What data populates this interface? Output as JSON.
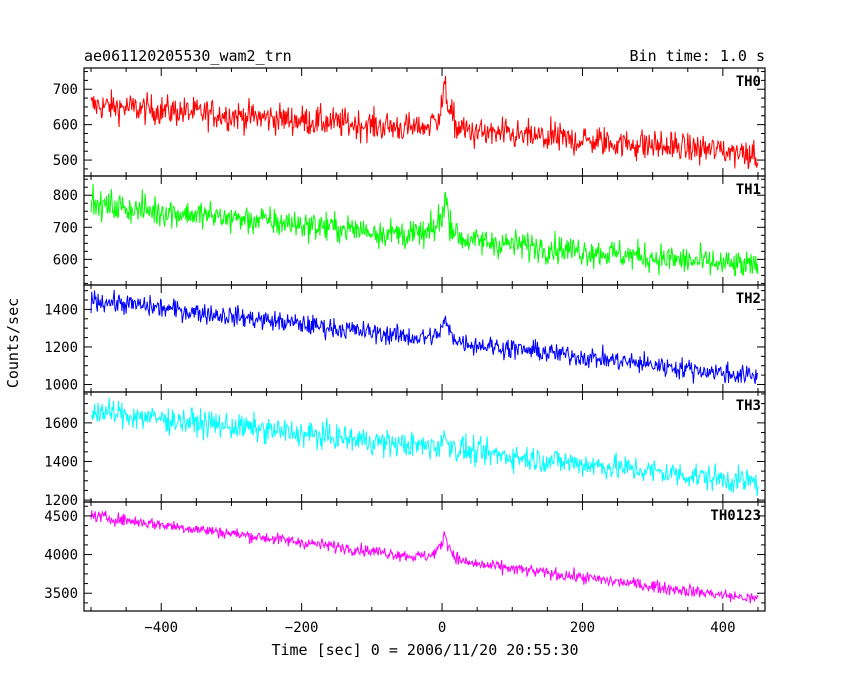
{
  "title_left": "ae061120205530_wam2_trn",
  "title_right": "Bin time: 1.0 s",
  "chart_data": {
    "type": "line",
    "xlabel": "Time [sec] 0 = 2006/11/20 20:55:30",
    "ylabel": "Counts/sec",
    "xlim": [
      -510,
      460
    ],
    "x_range": [
      -500,
      450
    ],
    "bin_time": 1.0,
    "x_ticks": [
      -400,
      -200,
      0,
      200,
      400
    ],
    "panels": [
      {
        "name": "TH0",
        "color": "#ff0000",
        "ylim": [
          455,
          760
        ],
        "yticks": [
          500,
          600,
          700
        ],
        "trend_start": 655,
        "trend_end": 520,
        "noise": 30,
        "burst_peak_time": 5,
        "burst_peak_rate": 740
      },
      {
        "name": "TH1",
        "color": "#00ff00",
        "ylim": [
          520,
          860
        ],
        "yticks": [
          600,
          700,
          800
        ],
        "trend_start": 770,
        "trend_end": 575,
        "noise": 32,
        "burst_peak_time": 5,
        "burst_peak_rate": 830
      },
      {
        "name": "TH2",
        "color": "#0000ff",
        "ylim": [
          960,
          1530
        ],
        "yticks": [
          1000,
          1200,
          1400
        ],
        "trend_start": 1450,
        "trend_end": 1040,
        "noise": 38,
        "burst_peak_time": 5,
        "burst_peak_rate": 1370
      },
      {
        "name": "TH3",
        "color": "#00ffff",
        "ylim": [
          1190,
          1760
        ],
        "yticks": [
          1200,
          1400,
          1600
        ],
        "trend_start": 1660,
        "trend_end": 1290,
        "noise": 48,
        "burst_peak_time": 5,
        "burst_peak_rate": 1540
      },
      {
        "name": "TH0123",
        "color": "#ff00ff",
        "ylim": [
          3270,
          4680
        ],
        "yticks": [
          3500,
          4000,
          4500
        ],
        "trend_start": 4500,
        "trend_end": 3420,
        "noise": 55,
        "burst_peak_time": 5,
        "burst_peak_rate": 4400
      }
    ]
  }
}
